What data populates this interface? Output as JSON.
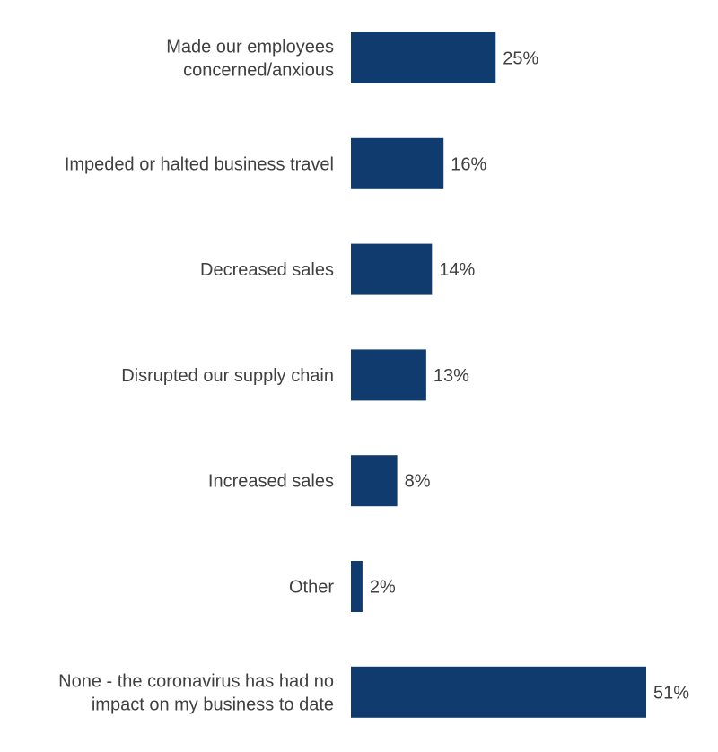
{
  "chart_data": {
    "type": "bar",
    "orientation": "horizontal",
    "categories": [
      [
        "Made our employees",
        "concerned/anxious"
      ],
      [
        "Impeded or halted business travel"
      ],
      [
        "Decreased sales"
      ],
      [
        "Disrupted our supply chain"
      ],
      [
        "Increased sales"
      ],
      [
        "Other"
      ],
      [
        "None - the coronavirus has had no",
        "impact on my business to date"
      ]
    ],
    "values": [
      25,
      16,
      14,
      13,
      8,
      2,
      51
    ],
    "value_labels": [
      "25%",
      "16%",
      "14%",
      "13%",
      "8%",
      "2%",
      "51%"
    ],
    "title": "",
    "xlabel": "",
    "ylabel": "",
    "xlim": [
      0,
      51
    ],
    "grid": false,
    "legend": "none",
    "bar_color": "#0F3B6E"
  }
}
